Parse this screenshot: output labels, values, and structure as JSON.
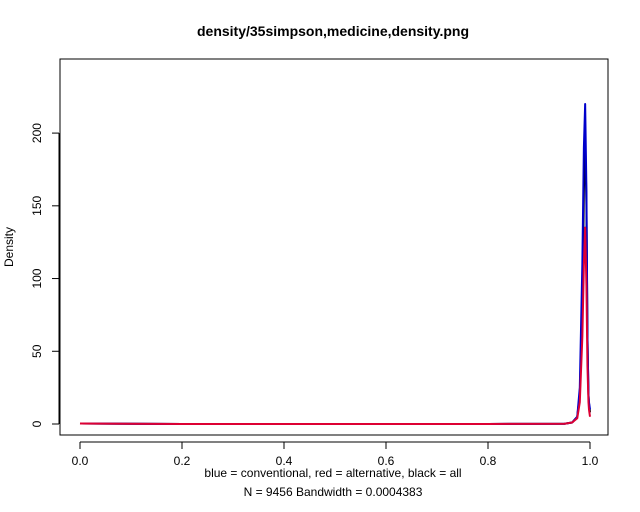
{
  "chart_data": {
    "type": "line",
    "title": "density/35simpson,medicine,density.png",
    "xlabel_line1": "blue = conventional, red = alternative, black = all",
    "xlabel_line2": "N = 9456   Bandwidth = 0.0004383",
    "ylabel": "Density",
    "xlim": [
      0.0,
      1.0
    ],
    "ylim": [
      0,
      220
    ],
    "x_ticks": [
      0.0,
      0.2,
      0.4,
      0.6,
      0.8,
      1.0
    ],
    "x_tick_labels": [
      "0.0",
      "0.2",
      "0.4",
      "0.6",
      "0.8",
      "1.0"
    ],
    "y_ticks": [
      0,
      50,
      100,
      150,
      200
    ],
    "y_tick_labels": [
      "0",
      "50",
      "100",
      "150",
      "200"
    ],
    "series": [
      {
        "color": "#000000",
        "points": [
          [
            0.0,
            0.3
          ],
          [
            0.2,
            0.0
          ],
          [
            0.5,
            0.0
          ],
          [
            0.8,
            0.0
          ],
          [
            0.95,
            0.2
          ],
          [
            0.965,
            1
          ],
          [
            0.975,
            5
          ],
          [
            0.98,
            20
          ],
          [
            0.985,
            80
          ],
          [
            0.988,
            160
          ],
          [
            0.9905,
            200
          ],
          [
            0.993,
            150
          ],
          [
            0.995,
            60
          ],
          [
            0.997,
            20
          ],
          [
            0.998,
            14
          ],
          [
            1.0,
            8
          ]
        ]
      },
      {
        "color": "#0000cc",
        "points": [
          [
            0.0,
            0.3
          ],
          [
            0.2,
            0.0
          ],
          [
            0.5,
            0.0
          ],
          [
            0.8,
            0.0
          ],
          [
            0.95,
            0.2
          ],
          [
            0.965,
            1
          ],
          [
            0.975,
            5
          ],
          [
            0.98,
            25
          ],
          [
            0.985,
            110
          ],
          [
            0.988,
            190
          ],
          [
            0.9905,
            220
          ],
          [
            0.993,
            160
          ],
          [
            0.995,
            60
          ],
          [
            0.997,
            20
          ],
          [
            0.998,
            15
          ],
          [
            1.0,
            10
          ]
        ]
      },
      {
        "color": "#dd0033",
        "points": [
          [
            0.0,
            0.3
          ],
          [
            0.2,
            0.0
          ],
          [
            0.5,
            0.0
          ],
          [
            0.8,
            0.0
          ],
          [
            0.95,
            0.2
          ],
          [
            0.965,
            1
          ],
          [
            0.975,
            4
          ],
          [
            0.98,
            15
          ],
          [
            0.985,
            60
          ],
          [
            0.988,
            110
          ],
          [
            0.9905,
            135
          ],
          [
            0.993,
            95
          ],
          [
            0.995,
            40
          ],
          [
            0.997,
            15
          ],
          [
            0.998,
            10
          ],
          [
            1.0,
            5
          ]
        ]
      }
    ]
  }
}
